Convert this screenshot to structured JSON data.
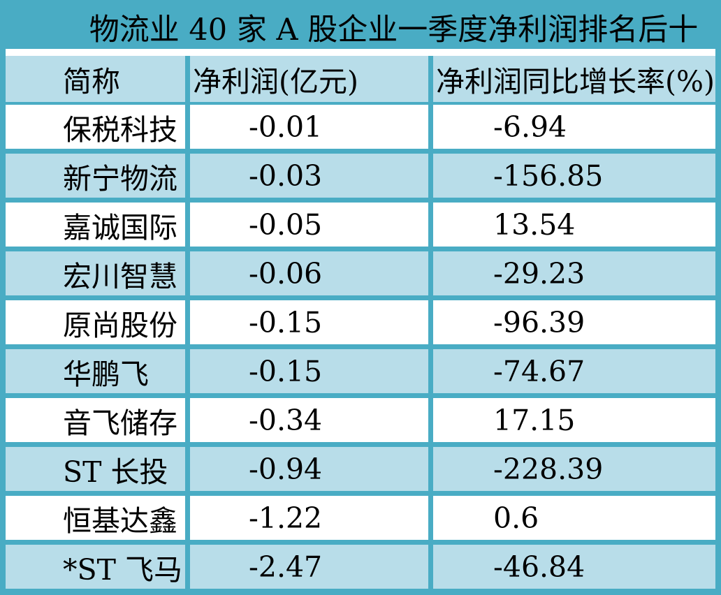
{
  "colors": {
    "teal": "#49acc4",
    "row_alt": "#b8dde9",
    "row_default": "#ffffff",
    "text": "#000000"
  },
  "chart_data": {
    "type": "table",
    "title": "物流业 40 家 A 股企业一季度净利润排名后十",
    "columns": [
      "简称",
      "净利润(亿元)",
      "净利润同比增长率(%)"
    ],
    "column_keys": [
      "abbreviation",
      "net_profit_100m_yuan",
      "net_profit_yoy_growth_pct"
    ],
    "rows": [
      [
        "保税科技",
        -0.01,
        -6.94
      ],
      [
        "新宁物流",
        -0.03,
        -156.85
      ],
      [
        "嘉诚国际",
        -0.05,
        13.54
      ],
      [
        "宏川智慧",
        -0.06,
        -29.23
      ],
      [
        "原尚股份",
        -0.15,
        -96.39
      ],
      [
        "华鹏飞",
        -0.15,
        -74.67
      ],
      [
        "音飞储存",
        -0.34,
        17.15
      ],
      [
        "ST 长投",
        -0.94,
        -228.39
      ],
      [
        "恒基达鑫",
        -1.22,
        0.6
      ],
      [
        "*ST 飞马",
        -2.47,
        -46.84
      ]
    ],
    "layout": {
      "header_background": "#b8dde9",
      "alternating_rows": true,
      "grid_lines": "teal",
      "value_alignment": "left-indented"
    }
  }
}
